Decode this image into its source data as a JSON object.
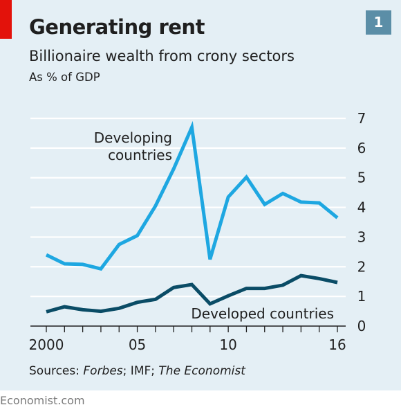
{
  "badge": "1",
  "title": "Generating rent",
  "subtitle": "Billionaire wealth from crony sectors",
  "unit": "As % of GDP",
  "source_prefix": "Sources: ",
  "source_forbes": "Forbes",
  "source_mid": "; IMF; ",
  "source_economist": "The Economist",
  "footer": "Economist.com",
  "colors": {
    "developing": "#1ea7e1",
    "developed": "#0a4c66",
    "grid": "#ffffff",
    "panel": "#e4eff5",
    "accent": "#e3120b"
  },
  "chart_data": {
    "type": "line",
    "title": "Generating rent",
    "subtitle": "Billionaire wealth from crony sectors",
    "ylabel": "As % of GDP",
    "ylim": [
      0,
      7
    ],
    "yticks": [
      0,
      1,
      2,
      3,
      4,
      5,
      6,
      7
    ],
    "xlim": [
      2000,
      2016
    ],
    "x": [
      2000,
      2001,
      2002,
      2003,
      2004,
      2005,
      2006,
      2007,
      2008,
      2009,
      2010,
      2011,
      2012,
      2013,
      2014,
      2015,
      2016
    ],
    "xticks": [
      {
        "value": 2000,
        "label": "2000"
      },
      {
        "value": 2005,
        "label": "05"
      },
      {
        "value": 2010,
        "label": "10"
      },
      {
        "value": 2016,
        "label": "16"
      }
    ],
    "grid": true,
    "yaxis_side": "right",
    "series": [
      {
        "name": "Developing countries",
        "label_lines": [
          "Developing",
          "countries"
        ],
        "color": "#1ea7e1",
        "values": [
          2.4,
          2.1,
          2.08,
          1.93,
          2.75,
          3.05,
          4.05,
          5.3,
          6.7,
          2.25,
          4.35,
          5.02,
          4.1,
          4.47,
          4.18,
          4.15,
          3.65
        ]
      },
      {
        "name": "Developed countries",
        "label_lines": [
          "Developed countries"
        ],
        "color": "#0a4c66",
        "values": [
          0.48,
          0.65,
          0.55,
          0.5,
          0.6,
          0.8,
          0.9,
          1.3,
          1.4,
          0.75,
          1.02,
          1.27,
          1.27,
          1.38,
          1.7,
          1.6,
          1.47
        ]
      }
    ]
  }
}
